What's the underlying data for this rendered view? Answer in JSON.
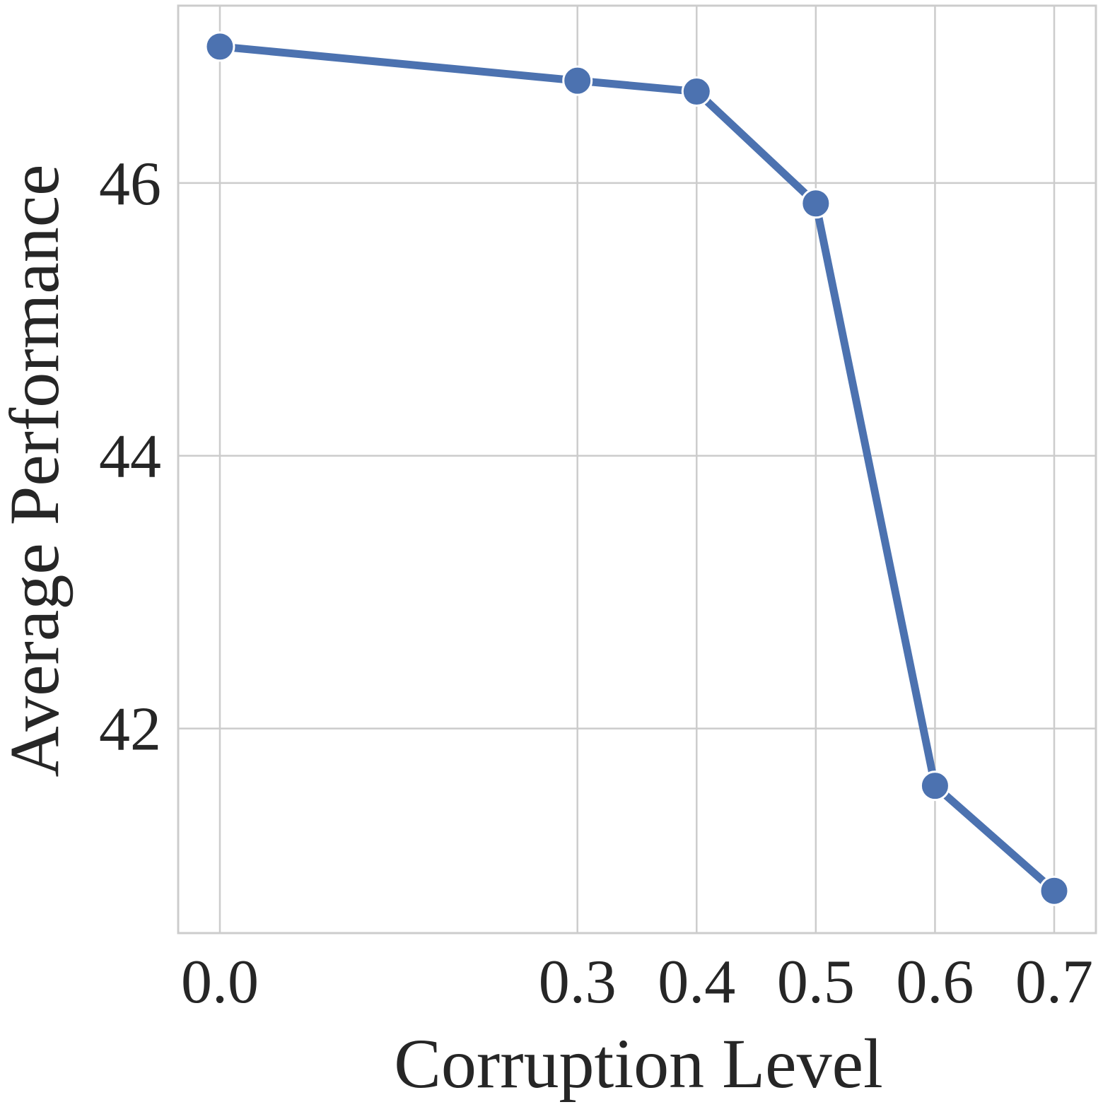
{
  "chart_data": {
    "type": "line",
    "xlabel": "Corruption Level",
    "ylabel": "Average Performance",
    "x": [
      0.0,
      0.3,
      0.4,
      0.5,
      0.6,
      0.7
    ],
    "x_tick_labels": [
      "0.0",
      "0.3",
      "0.4",
      "0.5",
      "0.6",
      "0.7"
    ],
    "y_ticks": [
      42,
      44,
      46
    ],
    "y_tick_labels": [
      "42",
      "44",
      "46"
    ],
    "xlim": [
      -0.035,
      0.735
    ],
    "ylim": [
      40.5,
      47.3
    ],
    "grid": true,
    "series": [
      {
        "values": [
          47.0,
          46.75,
          46.67,
          45.85,
          41.58,
          40.81
        ],
        "color": "#4c72b0"
      }
    ]
  }
}
